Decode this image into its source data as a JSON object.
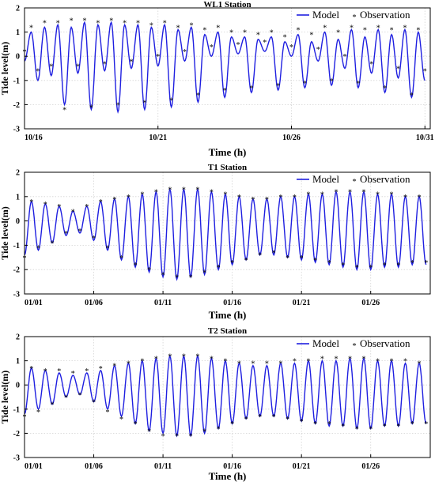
{
  "chart_data": [
    {
      "type": "line",
      "title": "WL1 Station",
      "xlabel": "Time (h)",
      "ylabel": "Tide level(m)",
      "xticklabels": [
        "10/16",
        "10/21",
        "10/26",
        "10/31"
      ],
      "xtick_days": [
        0,
        5,
        10,
        15
      ],
      "xlim_days": [
        0,
        15.2
      ],
      "yticks": [
        -3,
        -2,
        -1,
        0,
        1,
        2
      ],
      "ylim": [
        -3,
        2
      ],
      "grid": true,
      "legend": {
        "position": "top-right",
        "model": "Model",
        "observation": "Observation"
      },
      "series": [
        {
          "name": "Model",
          "x_days": [
            0.0,
            0.25,
            0.5,
            0.75,
            1.0,
            1.25,
            1.5,
            1.75,
            2.0,
            2.25,
            2.5,
            2.75,
            3.0,
            3.25,
            3.5,
            3.75,
            4.0,
            4.25,
            4.5,
            4.75,
            5.0,
            5.25,
            5.5,
            5.75,
            6.0,
            6.25,
            6.5,
            6.75,
            7.0,
            7.25,
            7.5,
            7.75,
            8.0,
            8.25,
            8.5,
            8.75,
            9.0,
            9.25,
            9.5,
            9.75,
            10.0,
            10.25,
            10.5,
            10.75,
            11.0,
            11.25,
            11.5,
            11.75,
            12.0,
            12.25,
            12.5,
            12.75,
            13.0,
            13.25,
            13.5,
            13.75,
            14.0,
            14.25,
            14.5,
            14.75,
            15.0
          ],
          "values": [
            -0.2,
            1.0,
            -1.0,
            1.2,
            -0.8,
            1.3,
            -2.0,
            1.2,
            -0.7,
            1.4,
            -2.2,
            1.3,
            -0.6,
            1.4,
            -2.3,
            1.3,
            -0.5,
            1.3,
            -2.2,
            1.2,
            -0.4,
            1.3,
            -2.1,
            1.1,
            -0.2,
            1.2,
            -1.9,
            0.9,
            0.0,
            1.0,
            -1.7,
            0.8,
            0.1,
            0.8,
            -1.5,
            0.7,
            0.2,
            0.8,
            -1.4,
            0.6,
            0.0,
            0.9,
            -1.3,
            0.6,
            -0.2,
            1.0,
            -1.2,
            0.7,
            -0.5,
            1.1,
            -1.3,
            0.8,
            -0.7,
            1.1,
            -1.5,
            0.9,
            -0.9,
            1.1,
            -1.7,
            1.0,
            -1.0
          ]
        },
        {
          "name": "Observation",
          "x_days": [
            0.0,
            0.25,
            0.5,
            0.75,
            1.0,
            1.25,
            1.5,
            1.75,
            2.0,
            2.25,
            2.5,
            2.75,
            3.0,
            3.25,
            3.5,
            3.75,
            4.0,
            4.25,
            4.5,
            4.75,
            5.0,
            5.25,
            5.5,
            5.75,
            6.0,
            6.25,
            6.5,
            6.75,
            7.0,
            7.25,
            7.5,
            7.75,
            8.0,
            8.25,
            8.5,
            8.75,
            9.0,
            9.25,
            9.5,
            9.75,
            10.0,
            10.25,
            10.5,
            10.75,
            11.0,
            11.25,
            11.5,
            11.75,
            12.0,
            12.25,
            12.5,
            12.75,
            13.0,
            13.25,
            13.5,
            13.75,
            14.0,
            14.25,
            14.5,
            14.75,
            15.0
          ],
          "values": [
            0.2,
            1.2,
            -0.6,
            1.4,
            -0.4,
            1.4,
            -2.2,
            1.5,
            -0.4,
            1.5,
            -2.1,
            1.4,
            -0.3,
            1.5,
            -2.0,
            1.4,
            -0.2,
            1.4,
            -1.9,
            1.3,
            0.0,
            1.4,
            -1.8,
            1.2,
            0.2,
            1.3,
            -1.6,
            1.1,
            0.4,
            1.2,
            -1.4,
            1.0,
            0.5,
            1.0,
            -1.3,
            0.9,
            0.6,
            1.0,
            -1.2,
            0.8,
            0.4,
            1.1,
            -1.1,
            0.9,
            0.3,
            1.2,
            -1.0,
            1.0,
            0.0,
            1.2,
            -1.1,
            1.1,
            -0.3,
            1.2,
            -1.3,
            1.1,
            -0.5,
            1.2,
            -1.6,
            1.1,
            -0.6
          ]
        }
      ]
    },
    {
      "type": "line",
      "title": "T1 Station",
      "xlabel": "Time (h)",
      "ylabel": "Tide level(m)",
      "xticklabels": [
        "01/01",
        "01/06",
        "01/11",
        "01/16",
        "01/21",
        "01/26"
      ],
      "xtick_days": [
        0,
        5,
        10,
        15,
        20,
        25
      ],
      "xlim_days": [
        0,
        29.3
      ],
      "yticks": [
        -3,
        -2,
        -1,
        0,
        1,
        2
      ],
      "ylim": [
        -3,
        2
      ],
      "grid": true,
      "legend": {
        "position": "top-right",
        "model": "Model",
        "observation": "Observation"
      },
      "series": [
        {
          "name": "Model",
          "x_days": [
            0,
            0.5,
            1,
            1.5,
            2,
            2.5,
            3,
            3.5,
            4,
            4.5,
            5,
            5.5,
            6,
            6.5,
            7,
            7.5,
            8,
            8.5,
            9,
            9.5,
            10,
            10.5,
            11,
            11.5,
            12,
            12.5,
            13,
            13.5,
            14,
            14.5,
            15,
            15.5,
            16,
            16.5,
            17,
            17.5,
            18,
            18.5,
            19,
            19.5,
            20,
            20.5,
            21,
            21.5,
            22,
            22.5,
            23,
            23.5,
            24,
            24.5,
            25,
            25.5,
            26,
            26.5,
            27,
            27.5,
            28,
            28.5,
            29
          ],
          "values": [
            -1.4,
            0.8,
            -1.2,
            0.7,
            -0.9,
            0.6,
            -0.6,
            0.4,
            -0.5,
            0.6,
            -0.8,
            0.8,
            -1.2,
            0.9,
            -1.6,
            1.0,
            -1.9,
            1.1,
            -2.1,
            1.2,
            -2.3,
            1.3,
            -2.4,
            1.3,
            -2.3,
            1.3,
            -2.2,
            1.2,
            -2.0,
            1.1,
            -1.8,
            1.0,
            -1.6,
            0.9,
            -1.4,
            0.9,
            -1.4,
            1.0,
            -1.5,
            1.0,
            -1.6,
            1.1,
            -1.7,
            1.1,
            -1.8,
            1.2,
            -1.9,
            1.2,
            -2.0,
            1.2,
            -2.0,
            1.1,
            -1.9,
            1.1,
            -1.9,
            1.0,
            -1.8,
            1.0,
            -1.8
          ]
        },
        {
          "name": "Observation",
          "x_days": [
            0,
            0.5,
            1,
            1.5,
            2,
            2.5,
            3,
            3.5,
            4,
            4.5,
            5,
            5.5,
            6,
            6.5,
            7,
            7.5,
            8,
            8.5,
            9,
            9.5,
            10,
            10.5,
            11,
            11.5,
            12,
            12.5,
            13,
            13.5,
            14,
            14.5,
            15,
            15.5,
            16,
            16.5,
            17,
            17.5,
            18,
            18.5,
            19,
            19.5,
            20,
            20.5,
            21,
            21.5,
            22,
            22.5,
            23,
            23.5,
            24,
            24.5,
            25,
            25.5,
            26,
            26.5,
            27,
            27.5,
            28,
            28.5,
            29
          ],
          "values": [
            -1.5,
            0.8,
            -1.1,
            0.7,
            -0.9,
            0.6,
            -0.5,
            0.4,
            -0.4,
            0.6,
            -0.7,
            0.8,
            -1.1,
            0.9,
            -1.5,
            1.0,
            -1.8,
            1.1,
            -2.0,
            1.2,
            -2.2,
            1.3,
            -2.3,
            1.3,
            -2.3,
            1.3,
            -2.1,
            1.2,
            -1.9,
            1.1,
            -1.7,
            1.0,
            -1.6,
            0.9,
            -1.4,
            0.9,
            -1.3,
            1.0,
            -1.5,
            1.0,
            -1.5,
            1.1,
            -1.6,
            1.1,
            -1.7,
            1.2,
            -1.8,
            1.2,
            -1.9,
            1.2,
            -1.9,
            1.1,
            -1.8,
            1.1,
            -1.8,
            1.0,
            -1.7,
            1.0,
            -1.7
          ]
        }
      ]
    },
    {
      "type": "line",
      "title": "T2 Station",
      "xlabel": "Time (h)",
      "ylabel": "Tide level(m)",
      "xticklabels": [
        "01/01",
        "01/06",
        "01/11",
        "01/16",
        "01/21",
        "01/26"
      ],
      "xtick_days": [
        0,
        5,
        10,
        15,
        20,
        25
      ],
      "xlim_days": [
        0,
        29.3
      ],
      "yticks": [
        -3,
        -2,
        -1,
        0,
        1,
        2
      ],
      "ylim": [
        -3,
        2
      ],
      "grid": true,
      "legend": {
        "position": "top-right",
        "model": "Model",
        "observation": "Observation"
      },
      "series": [
        {
          "name": "Model",
          "x_days": [
            0,
            0.5,
            1,
            1.5,
            2,
            2.5,
            3,
            3.5,
            4,
            4.5,
            5,
            5.5,
            6,
            6.5,
            7,
            7.5,
            8,
            8.5,
            9,
            9.5,
            10,
            10.5,
            11,
            11.5,
            12,
            12.5,
            13,
            13.5,
            14,
            14.5,
            15,
            15.5,
            16,
            16.5,
            17,
            17.5,
            18,
            18.5,
            19,
            19.5,
            20,
            20.5,
            21,
            21.5,
            22,
            22.5,
            23,
            23.5,
            24,
            24.5,
            25,
            25.5,
            26,
            26.5,
            27,
            27.5,
            28,
            28.5,
            29
          ],
          "values": [
            -1.2,
            0.7,
            -1.0,
            0.6,
            -0.8,
            0.5,
            -0.5,
            0.4,
            -0.4,
            0.5,
            -0.7,
            0.6,
            -1.0,
            0.8,
            -1.3,
            0.9,
            -1.6,
            1.0,
            -1.9,
            1.1,
            -2.0,
            1.2,
            -2.1,
            1.2,
            -2.1,
            1.2,
            -2.0,
            1.1,
            -1.8,
            1.0,
            -1.6,
            0.9,
            -1.4,
            0.8,
            -1.3,
            0.8,
            -1.3,
            0.9,
            -1.4,
            0.9,
            -1.5,
            1.0,
            -1.6,
            1.0,
            -1.7,
            1.0,
            -1.7,
            1.1,
            -1.8,
            1.1,
            -1.8,
            1.0,
            -1.7,
            1.0,
            -1.7,
            0.9,
            -1.6,
            0.9,
            -1.6
          ]
        },
        {
          "name": "Observation",
          "x_days": [
            0,
            0.5,
            1,
            1.5,
            2,
            2.5,
            3,
            3.5,
            4,
            4.5,
            5,
            5.5,
            6,
            6.5,
            7,
            7.5,
            8,
            8.5,
            9,
            9.5,
            10,
            10.5,
            11,
            11.5,
            12,
            12.5,
            13,
            13.5,
            14,
            14.5,
            15,
            15.5,
            16,
            16.5,
            17,
            17.5,
            18,
            18.5,
            19,
            19.5,
            20,
            20.5,
            21,
            21.5,
            22,
            22.5,
            23,
            23.5,
            24,
            24.5,
            25,
            25.5,
            26,
            26.5,
            27,
            27.5,
            28,
            28.5,
            29
          ],
          "values": [
            -1.3,
            0.7,
            -1.1,
            0.6,
            -0.8,
            0.6,
            -0.5,
            0.5,
            -0.4,
            0.6,
            -0.7,
            0.7,
            -1.1,
            0.8,
            -1.4,
            0.9,
            -1.6,
            1.0,
            -1.9,
            1.1,
            -2.1,
            1.2,
            -2.1,
            1.2,
            -2.1,
            1.2,
            -1.9,
            1.1,
            -1.8,
            1.0,
            -1.6,
            0.9,
            -1.4,
            0.9,
            -1.3,
            0.9,
            -1.3,
            0.9,
            -1.4,
            1.0,
            -1.5,
            1.0,
            -1.6,
            1.1,
            -1.6,
            1.1,
            -1.7,
            1.1,
            -1.8,
            1.1,
            -1.8,
            1.0,
            -1.7,
            1.0,
            -1.7,
            1.0,
            -1.6,
            0.9,
            -1.6
          ]
        }
      ]
    }
  ]
}
